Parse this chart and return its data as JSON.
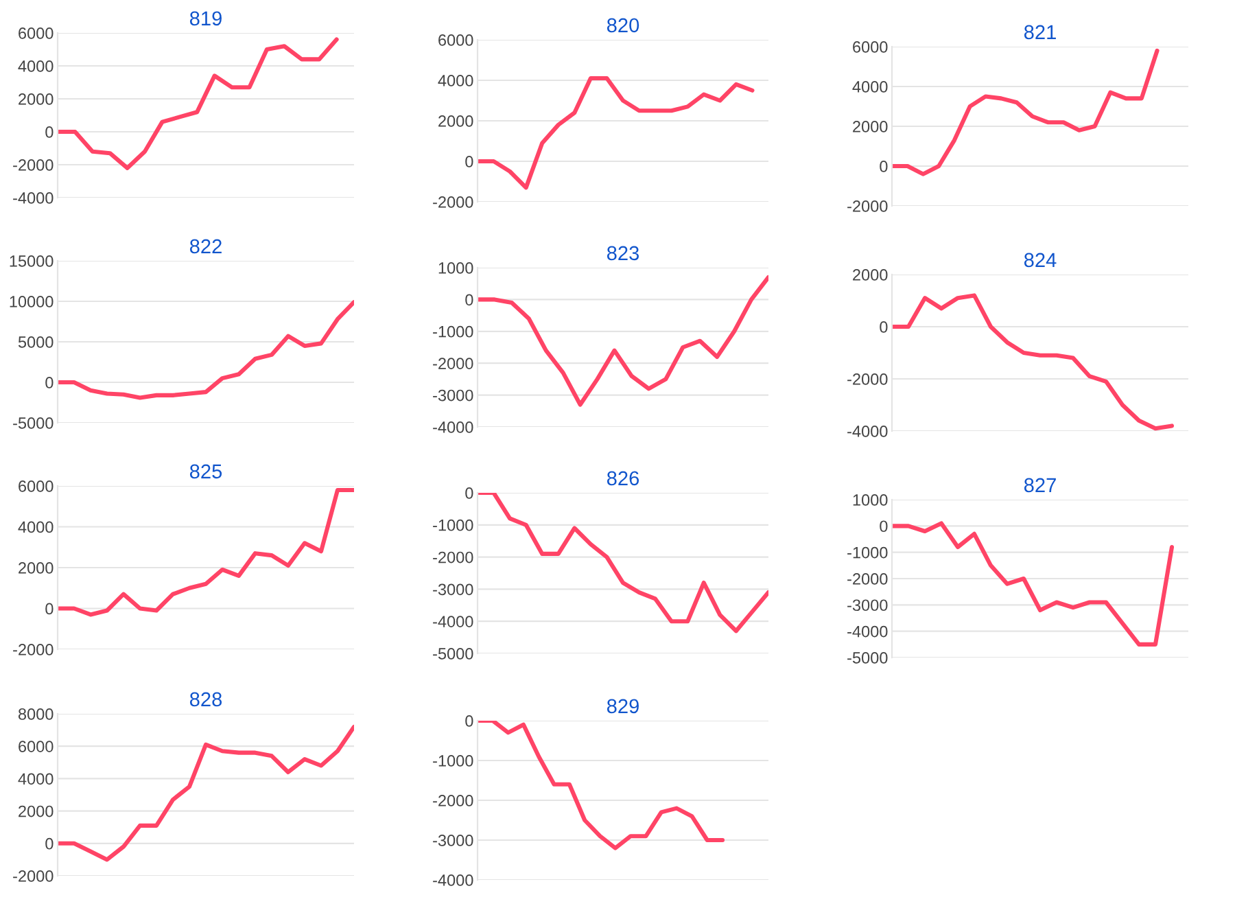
{
  "chart_data": [
    {
      "type": "line",
      "title": "819",
      "categories": [
        null,
        null,
        null,
        null,
        null,
        null,
        null,
        null,
        null,
        null,
        null,
        null,
        null,
        null,
        null,
        null,
        null,
        null
      ],
      "series": [
        {
          "color": "#ff4466",
          "values": [
            0,
            0,
            -1200,
            -1300,
            -2200,
            -1200,
            600,
            900,
            1200,
            3400,
            2700,
            2700,
            5000,
            5200,
            4400,
            4400,
            5600,
            null
          ]
        }
      ],
      "ylim": [
        -4000,
        6000
      ],
      "yticks": [
        -4000,
        -2000,
        0,
        2000,
        4000,
        6000
      ],
      "grid": "y",
      "tick_labels": "y",
      "line_style": "solid",
      "marker": "none"
    },
    {
      "type": "line",
      "title": "820",
      "categories": [
        null,
        null,
        null,
        null,
        null,
        null,
        null,
        null,
        null,
        null,
        null,
        null,
        null,
        null,
        null,
        null,
        null,
        null,
        null
      ],
      "series": [
        {
          "color": "#ff4466",
          "values": [
            0,
            0,
            -500,
            -1300,
            900,
            1800,
            2400,
            4100,
            4100,
            3000,
            2500,
            2500,
            2500,
            2700,
            3300,
            3000,
            3800,
            3500,
            null
          ]
        }
      ],
      "ylim": [
        -2000,
        6000
      ],
      "yticks": [
        -2000,
        0,
        2000,
        4000,
        6000
      ],
      "grid": "y",
      "tick_labels": "y",
      "line_style": "solid",
      "marker": "none"
    },
    {
      "type": "line",
      "title": "821",
      "categories": [
        null,
        null,
        null,
        null,
        null,
        null,
        null,
        null,
        null,
        null,
        null,
        null,
        null,
        null,
        null,
        null,
        null,
        null,
        null,
        null
      ],
      "series": [
        {
          "color": "#ff4466",
          "values": [
            0,
            0,
            -400,
            0,
            1300,
            3000,
            3500,
            3400,
            3200,
            2500,
            2200,
            2200,
            1800,
            2000,
            3700,
            3400,
            3400,
            5800,
            null,
            null
          ]
        }
      ],
      "ylim": [
        -2000,
        6000
      ],
      "yticks": [
        -2000,
        0,
        2000,
        4000,
        6000
      ],
      "grid": "y",
      "tick_labels": "y",
      "line_style": "solid",
      "marker": "none"
    },
    {
      "type": "line",
      "title": "822",
      "categories": [
        null,
        null,
        null,
        null,
        null,
        null,
        null,
        null,
        null,
        null,
        null,
        null,
        null,
        null,
        null,
        null,
        null,
        null,
        null
      ],
      "series": [
        {
          "color": "#ff4466",
          "values": [
            0,
            0,
            -1000,
            -1400,
            -1500,
            -1900,
            -1600,
            -1600,
            -1400,
            -1200,
            500,
            1000,
            2900,
            3400,
            5700,
            4500,
            4800,
            7800,
            9900
          ]
        }
      ],
      "ylim": [
        -5000,
        15000
      ],
      "yticks": [
        -5000,
        0,
        5000,
        10000,
        15000
      ],
      "grid": "y",
      "tick_labels": "y",
      "line_style": "solid",
      "marker": "none"
    },
    {
      "type": "line",
      "title": "823",
      "categories": [
        null,
        null,
        null,
        null,
        null,
        null,
        null,
        null,
        null,
        null,
        null,
        null,
        null,
        null,
        null,
        null,
        null,
        null
      ],
      "series": [
        {
          "color": "#ff4466",
          "values": [
            0,
            0,
            -100,
            -600,
            -1600,
            -2300,
            -3300,
            -2500,
            -1600,
            -2400,
            -2800,
            -2500,
            -1500,
            -1300,
            -1800,
            -1000,
            0,
            700
          ]
        }
      ],
      "ylim": [
        -4000,
        1000
      ],
      "yticks": [
        -4000,
        -3000,
        -2000,
        -1000,
        0,
        1000
      ],
      "grid": "y",
      "tick_labels": "y",
      "line_style": "solid",
      "marker": "none"
    },
    {
      "type": "line",
      "title": "824",
      "categories": [
        null,
        null,
        null,
        null,
        null,
        null,
        null,
        null,
        null,
        null,
        null,
        null,
        null,
        null,
        null,
        null,
        null,
        null,
        null
      ],
      "series": [
        {
          "color": "#ff4466",
          "values": [
            0,
            0,
            1100,
            700,
            1100,
            1200,
            0,
            -600,
            -1000,
            -1100,
            -1100,
            -1200,
            -1900,
            -2100,
            -3000,
            -3600,
            -3900,
            -3800,
            null
          ]
        }
      ],
      "ylim": [
        -4000,
        2000
      ],
      "yticks": [
        -4000,
        -2000,
        0,
        2000
      ],
      "grid": "y",
      "tick_labels": "y",
      "line_style": "solid",
      "marker": "none"
    },
    {
      "type": "line",
      "title": "825",
      "categories": [
        null,
        null,
        null,
        null,
        null,
        null,
        null,
        null,
        null,
        null,
        null,
        null,
        null,
        null,
        null,
        null,
        null,
        null,
        null
      ],
      "series": [
        {
          "color": "#ff4466",
          "values": [
            0,
            0,
            -300,
            -100,
            700,
            0,
            -100,
            700,
            1000,
            1200,
            1900,
            1600,
            2700,
            2600,
            2100,
            3200,
            2800,
            5800,
            5800
          ]
        }
      ],
      "ylim": [
        -2000,
        6000
      ],
      "yticks": [
        -2000,
        0,
        2000,
        4000,
        6000
      ],
      "grid": "y",
      "tick_labels": "y",
      "line_style": "solid",
      "marker": "none"
    },
    {
      "type": "line",
      "title": "826",
      "categories": [
        null,
        null,
        null,
        null,
        null,
        null,
        null,
        null,
        null,
        null,
        null,
        null,
        null,
        null,
        null,
        null,
        null,
        null,
        null
      ],
      "series": [
        {
          "color": "#ff4466",
          "values": [
            0,
            0,
            -800,
            -1000,
            -1900,
            -1900,
            -1100,
            -1600,
            -2000,
            -2800,
            -3100,
            -3300,
            -4000,
            -4000,
            -2800,
            -3800,
            -4300,
            -3700,
            -3100
          ]
        }
      ],
      "ylim": [
        -5000,
        0
      ],
      "yticks": [
        -5000,
        -4000,
        -3000,
        -2000,
        -1000,
        0
      ],
      "grid": "y",
      "tick_labels": "y",
      "line_style": "solid",
      "marker": "none"
    },
    {
      "type": "line",
      "title": "827",
      "categories": [
        null,
        null,
        null,
        null,
        null,
        null,
        null,
        null,
        null,
        null,
        null,
        null,
        null,
        null,
        null,
        null,
        null,
        null,
        null
      ],
      "series": [
        {
          "color": "#ff4466",
          "values": [
            0,
            0,
            -200,
            100,
            -800,
            -300,
            -1500,
            -2200,
            -2000,
            -3200,
            -2900,
            -3100,
            -2900,
            -2900,
            -3700,
            -4500,
            -4500,
            -800,
            null
          ]
        }
      ],
      "ylim": [
        -5000,
        1000
      ],
      "yticks": [
        -5000,
        -4000,
        -3000,
        -2000,
        -1000,
        0,
        1000
      ],
      "grid": "y",
      "tick_labels": "y",
      "line_style": "solid",
      "marker": "none"
    },
    {
      "type": "line",
      "title": "828",
      "categories": [
        null,
        null,
        null,
        null,
        null,
        null,
        null,
        null,
        null,
        null,
        null,
        null,
        null,
        null,
        null,
        null,
        null,
        null,
        null
      ],
      "series": [
        {
          "color": "#ff4466",
          "values": [
            0,
            0,
            -500,
            -1000,
            -200,
            1100,
            1100,
            2700,
            3500,
            6100,
            5700,
            5600,
            5600,
            5400,
            4400,
            5200,
            4800,
            5700,
            7200
          ]
        }
      ],
      "ylim": [
        -2000,
        8000
      ],
      "yticks": [
        -2000,
        0,
        2000,
        4000,
        6000,
        8000
      ],
      "grid": "y",
      "tick_labels": "y",
      "line_style": "solid",
      "marker": "none"
    },
    {
      "type": "line",
      "title": "829",
      "categories": [
        null,
        null,
        null,
        null,
        null,
        null,
        null,
        null,
        null,
        null,
        null,
        null,
        null,
        null,
        null,
        null,
        null,
        null,
        null,
        null
      ],
      "series": [
        {
          "color": "#ff4466",
          "values": [
            0,
            0,
            -300,
            -100,
            -900,
            -1600,
            -1600,
            -2500,
            -2900,
            -3200,
            -2900,
            -2900,
            -2300,
            -2200,
            -2400,
            -3000,
            -3000,
            null,
            null,
            null
          ]
        }
      ],
      "ylim": [
        -4000,
        0
      ],
      "yticks": [
        -4000,
        -3000,
        -2000,
        -1000,
        0
      ],
      "grid": "y",
      "tick_labels": "y",
      "line_style": "solid",
      "marker": "none"
    }
  ]
}
